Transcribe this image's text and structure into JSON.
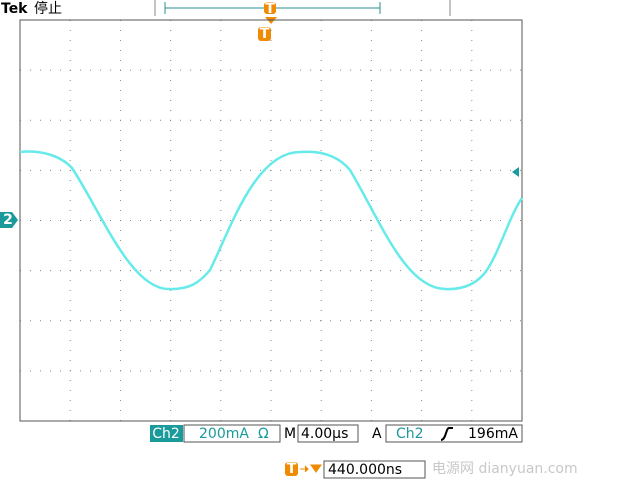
{
  "header": {
    "brand": "Tek",
    "status": "停止"
  },
  "markers": {
    "trigger_top": "T",
    "trigger_position": "T",
    "channel": "2"
  },
  "status_bar": {
    "channel": "Ch2",
    "scale": "200mA",
    "unit_symbol": "Ω",
    "timebase_prefix": "M",
    "timebase": "4.00µs",
    "trigger_mode": "A",
    "trigger_source": "Ch2",
    "trigger_level": "196mA"
  },
  "trigger_offset": {
    "label": "T",
    "value": "440.000ns"
  },
  "watermark": "电源网 dianyuan.com"
}
